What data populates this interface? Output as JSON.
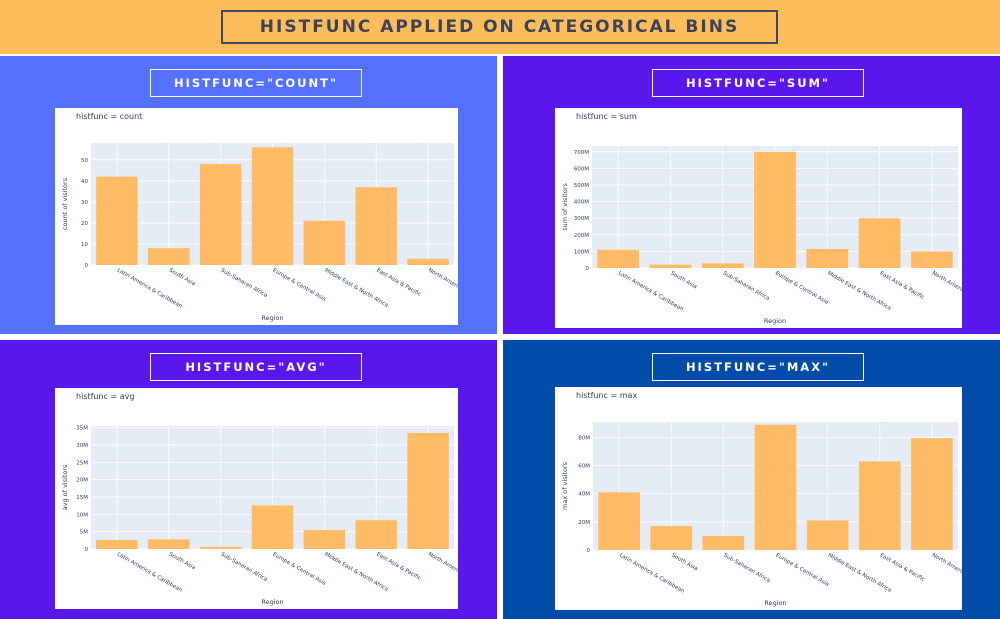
{
  "header": {
    "title": "HISTFUNC APPLIED ON CATEGORICAL BINS"
  },
  "colors": {
    "bar": "#ffbb65",
    "plot_bg": "#e5ecf6",
    "grid": "#ffffff",
    "text": "#2a3f5f"
  },
  "panels": [
    {
      "label": "HISTFUNC=\"COUNT\""
    },
    {
      "label": "HISTFUNC=\"SUM\""
    },
    {
      "label": "HISTFUNC=\"AVG\""
    },
    {
      "label": "HISTFUNC=\"MAX\""
    }
  ],
  "chart_data": [
    {
      "type": "bar",
      "title": "histfunc = count",
      "xlabel": "Region",
      "ylabel": "count of visitors",
      "categories": [
        "Latin America & Caribbean",
        "South Asia",
        "Sub-Saharan Africa",
        "Europe & Central Asia",
        "Middle East & North Africa",
        "East Asia & Pacific",
        "North America"
      ],
      "values": [
        42,
        8,
        48,
        56,
        21,
        37,
        3
      ],
      "ylim": [
        0,
        58
      ],
      "yticks": [
        0,
        10,
        20,
        30,
        40,
        50
      ],
      "ytick_labels": [
        "0",
        "10",
        "20",
        "30",
        "40",
        "50"
      ]
    },
    {
      "type": "bar",
      "title": "histfunc = sum",
      "xlabel": "Region",
      "ylabel": "sum of visitors",
      "categories": [
        "Latin America & Caribbean",
        "South Asia",
        "Sub-Saharan Africa",
        "Europe & Central Asia",
        "Middle East & North Africa",
        "East Asia & Pacific",
        "North America"
      ],
      "values": [
        110000000,
        20000000,
        28000000,
        700000000,
        115000000,
        300000000,
        100000000
      ],
      "ylim": [
        0,
        735000000
      ],
      "yticks": [
        0,
        100000000,
        200000000,
        300000000,
        400000000,
        500000000,
        600000000,
        700000000
      ],
      "ytick_labels": [
        "0",
        "100M",
        "200M",
        "300M",
        "400M",
        "500M",
        "600M",
        "700M"
      ]
    },
    {
      "type": "bar",
      "title": "histfunc = avg",
      "xlabel": "Region",
      "ylabel": "avg of visitors",
      "categories": [
        "Latin America & Caribbean",
        "South Asia",
        "Sub-Saharan Africa",
        "Europe & Central Asia",
        "Middle East & North Africa",
        "East Asia & Pacific",
        "North America"
      ],
      "values": [
        2600000,
        2800000,
        600000,
        12600000,
        5500000,
        8300000,
        33500000
      ],
      "ylim": [
        0,
        35500000
      ],
      "yticks": [
        0,
        5000000,
        10000000,
        15000000,
        20000000,
        25000000,
        30000000,
        35000000
      ],
      "ytick_labels": [
        "0",
        "5M",
        "10M",
        "15M",
        "20M",
        "25M",
        "30M",
        "35M"
      ]
    },
    {
      "type": "bar",
      "title": "histfunc = max",
      "xlabel": "Region",
      "ylabel": "max of visitors",
      "categories": [
        "Latin America & Caribbean",
        "South Asia",
        "Sub-Saharan Africa",
        "Europe & Central Asia",
        "Middle East & North Africa",
        "East Asia & Pacific",
        "North America"
      ],
      "values": [
        41000000,
        17000000,
        10000000,
        89000000,
        21000000,
        63000000,
        79500000
      ],
      "ylim": [
        0,
        91000000
      ],
      "yticks": [
        0,
        20000000,
        40000000,
        60000000,
        80000000
      ],
      "ytick_labels": [
        "0",
        "20M",
        "40M",
        "60M",
        "80M"
      ]
    }
  ]
}
